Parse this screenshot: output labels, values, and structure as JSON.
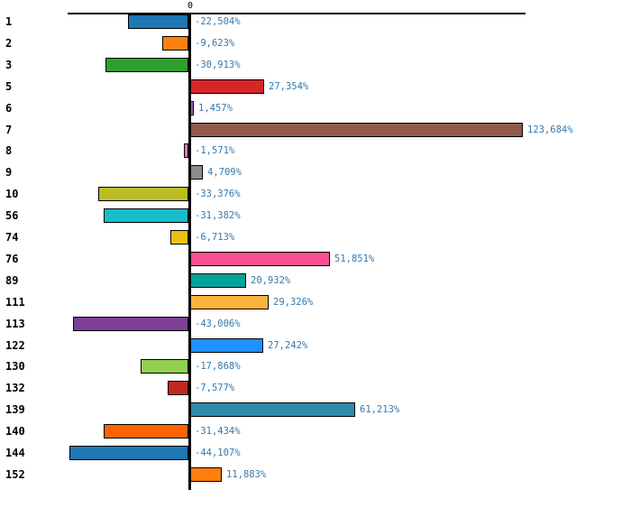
{
  "chart_data": {
    "type": "bar",
    "orientation": "horizontal",
    "title": "",
    "xlabel": "",
    "ylabel": "",
    "zero_tick_label": "0",
    "value_suffix": "%",
    "decimal_separator": ",",
    "xlim": [
      -45,
      125
    ],
    "grid": false,
    "legend": "none",
    "value_label_color": "#3579ad",
    "category_label_color": "#000000",
    "axis_color": "#000000",
    "categories": [
      "1",
      "2",
      "3",
      "5",
      "6",
      "7",
      "8",
      "9",
      "10",
      "56",
      "74",
      "76",
      "89",
      "111",
      "113",
      "122",
      "130",
      "132",
      "139",
      "140",
      "144",
      "152"
    ],
    "values": [
      -22.504,
      -9.623,
      -30.913,
      27.354,
      1.457,
      123.684,
      -1.571,
      4.709,
      -33.376,
      -31.382,
      -6.713,
      51.851,
      20.932,
      29.326,
      -43.006,
      27.242,
      -17.868,
      -7.577,
      61.213,
      -31.434,
      -44.107,
      11.883
    ],
    "value_labels": [
      "-22,504%",
      "-9,623%",
      "-30,913%",
      "27,354%",
      "1,457%",
      "123,684%",
      "-1,571%",
      "4,709%",
      "-33,376%",
      "-31,382%",
      "-6,713%",
      "51,851%",
      "20,932%",
      "29,326%",
      "-43,006%",
      "27,242%",
      "-17,868%",
      "-7,577%",
      "61,213%",
      "-31,434%",
      "-44,107%",
      "11,883%"
    ],
    "bar_colors": [
      "#1f77b4",
      "#ff7f0e",
      "#2ca02c",
      "#d62728",
      "#9467bd",
      "#8f5a4b",
      "#e377c2",
      "#8c8c8c",
      "#bcbd22",
      "#18bccb",
      "#ecc013",
      "#fb4f93",
      "#00a499",
      "#fbb340",
      "#7d3f98",
      "#1e90ff",
      "#92d050",
      "#c1281e",
      "#2e8ba8",
      "#fd6500",
      "#1f77b4",
      "#ff7f0e"
    ]
  }
}
